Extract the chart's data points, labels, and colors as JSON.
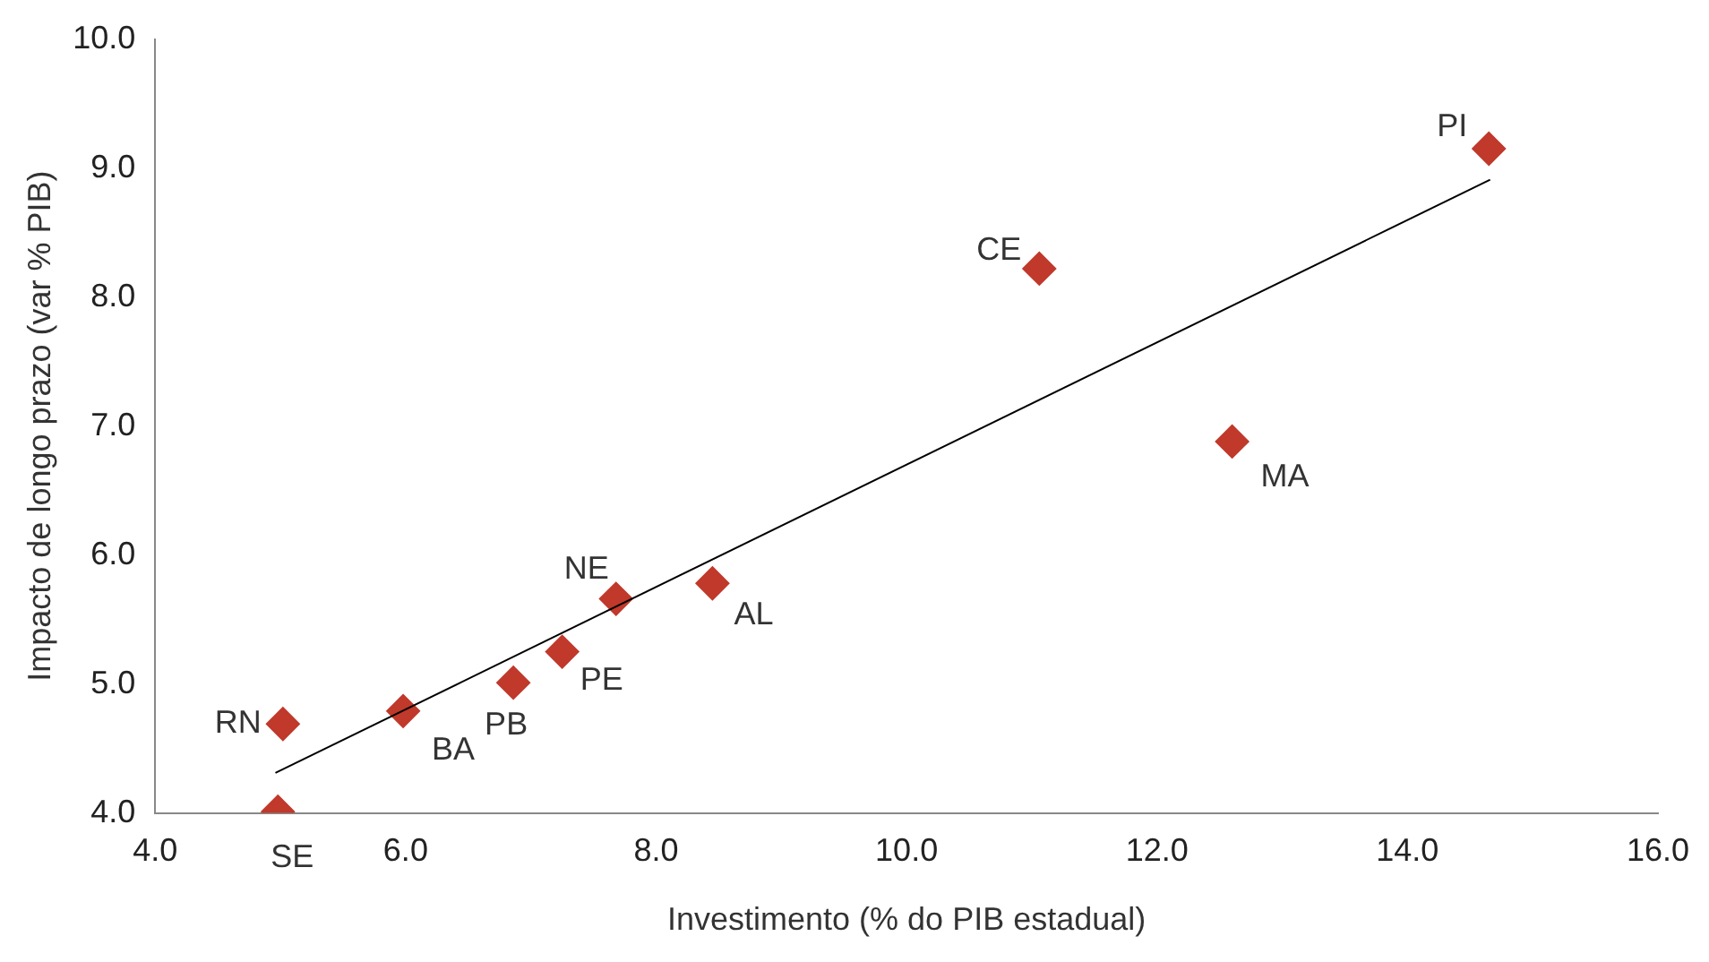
{
  "chart_data": {
    "type": "scatter",
    "xlabel": "Investimento (% do PIB estadual)",
    "ylabel": "Impacto de longo prazo (var % PIB)",
    "xlim": [
      4,
      16
    ],
    "xticks": [
      {
        "value": 4,
        "label": "4.0"
      },
      {
        "value": 6,
        "label": "6.0"
      },
      {
        "value": 8,
        "label": "8.0"
      },
      {
        "value": 10,
        "label": "10.0"
      },
      {
        "value": 12,
        "label": "12.0"
      },
      {
        "value": 14,
        "label": "14.0"
      },
      {
        "value": 16,
        "label": "16.0"
      }
    ],
    "ylim": [
      4,
      10
    ],
    "yticks": [
      {
        "value": 4,
        "label": "4.0"
      },
      {
        "value": 5,
        "label": "5.0"
      },
      {
        "value": 6,
        "label": "6.0"
      },
      {
        "value": 7,
        "label": "7.0"
      },
      {
        "value": 8,
        "label": "8.0"
      },
      {
        "value": 9,
        "label": "9.0"
      },
      {
        "value": 10,
        "label": "10.0"
      }
    ],
    "grid": false,
    "legend": false,
    "series": [
      {
        "color": "#c0392b",
        "marker": "diamond",
        "x": [
          14.65,
          11.06,
          12.6,
          8.45,
          7.68,
          7.25,
          6.86,
          5.98,
          5.02,
          4.98
        ],
        "values": [
          9.15,
          8.22,
          6.88,
          5.78,
          5.66,
          5.25,
          5.01,
          4.79,
          4.69,
          4.01
        ]
      },
      {
        "type": "line",
        "color": "#000000",
        "marker": "none",
        "line_style": "solid",
        "x": [
          4.96,
          14.66
        ],
        "values": [
          4.31,
          8.91
        ]
      }
    ],
    "annotations": [
      {
        "text": "PI",
        "x": 14.65,
        "y": 9.15
      },
      {
        "text": "CE",
        "x": 11.06,
        "y": 8.22
      },
      {
        "text": "MA",
        "x": 12.6,
        "y": 6.88
      },
      {
        "text": "AL",
        "x": 8.45,
        "y": 5.78
      },
      {
        "text": "NE",
        "x": 7.68,
        "y": 5.66
      },
      {
        "text": "PE",
        "x": 7.25,
        "y": 5.25
      },
      {
        "text": "PB",
        "x": 6.86,
        "y": 5.01
      },
      {
        "text": "BA",
        "x": 5.98,
        "y": 4.79
      },
      {
        "text": "RN",
        "x": 5.02,
        "y": 4.69
      },
      {
        "text": "SE",
        "x": 4.98,
        "y": 4.01
      }
    ]
  }
}
